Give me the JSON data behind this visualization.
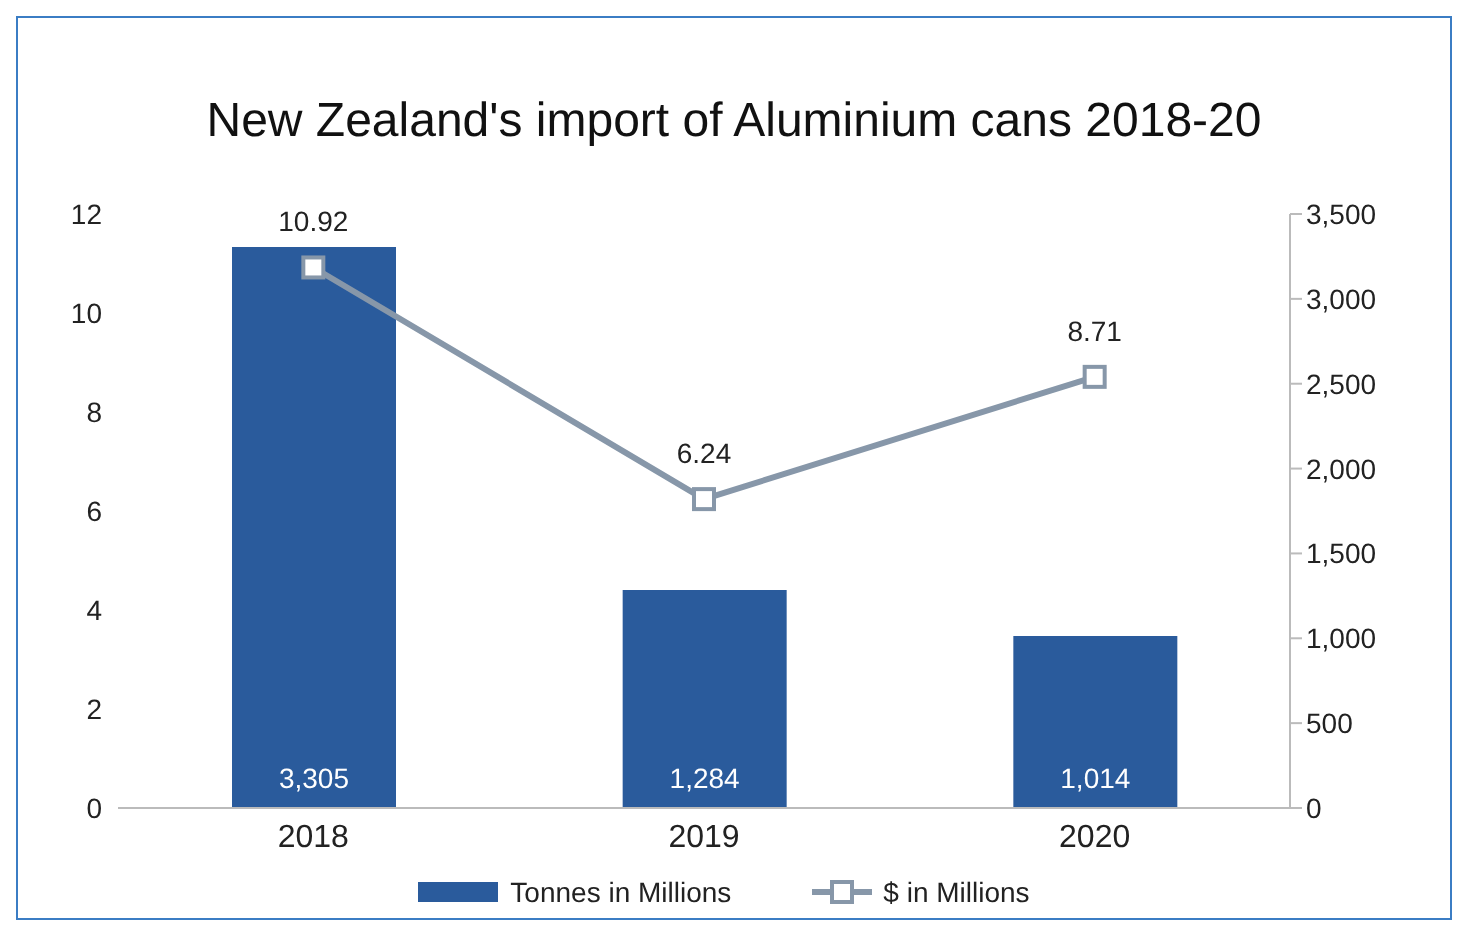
{
  "chart_data": {
    "type": "bar",
    "title": "New Zealand's import of Aluminium cans 2018-20",
    "categories": [
      "2018",
      "2019",
      "2020"
    ],
    "series": [
      {
        "name": "Tonnes in Millions",
        "axis": "y2",
        "color": "#2a5b9c",
        "values": [
          3305,
          1284,
          1014
        ],
        "value_labels": [
          "3,305",
          "1,284",
          "1,014"
        ]
      },
      {
        "name": "$ in Millions",
        "type": "line",
        "axis": "y",
        "color": "#8797a9",
        "values": [
          10.92,
          6.24,
          8.71
        ],
        "value_labels": [
          "10.92",
          "6.24",
          "8.71"
        ]
      }
    ],
    "ylim": [
      0,
      12
    ],
    "yticks": [
      0,
      2,
      4,
      6,
      8,
      10,
      12
    ],
    "y2lim": [
      0,
      3500
    ],
    "y2ticks": [
      0,
      {
        "value": 500,
        "label": "500"
      },
      {
        "value": 1000,
        "label": "1,000"
      },
      {
        "value": 1500,
        "label": "1,500"
      },
      {
        "value": 2000,
        "label": "2,000"
      },
      {
        "value": 2500,
        "label": "2,500"
      },
      {
        "value": 3000,
        "label": "3,000"
      },
      {
        "value": 3500,
        "label": "3,500"
      }
    ],
    "grid": false,
    "legend": "bottom",
    "marker": "square",
    "line_style": "solid"
  }
}
